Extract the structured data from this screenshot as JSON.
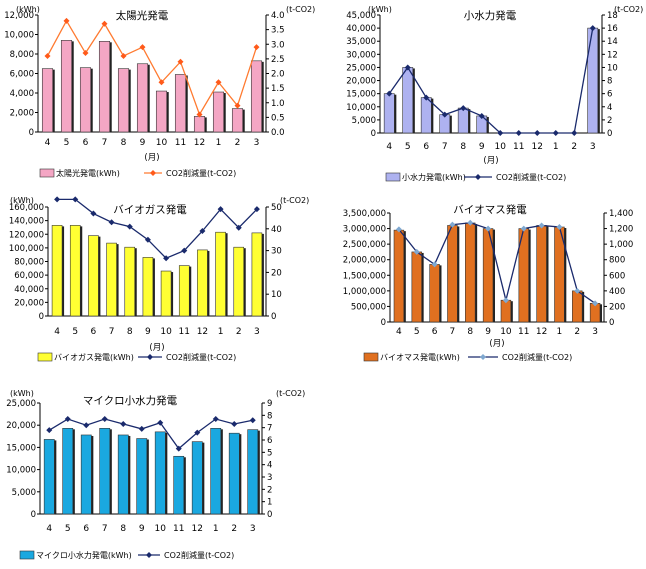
{
  "chart_data": [
    {
      "type": "bar",
      "title": "太陽光発電",
      "xlabel": "(月)",
      "y_unit_left": "(kWh)",
      "y_unit_right": "(t-CO2)",
      "categories": [
        "4",
        "5",
        "6",
        "7",
        "8",
        "9",
        "10",
        "11",
        "12",
        "1",
        "2",
        "3"
      ],
      "ylim_left": [
        0,
        12000
      ],
      "ytick_left": [
        "0",
        "2,000",
        "4,000",
        "6,000",
        "8,000",
        "10,000",
        "12,000"
      ],
      "ylim_right": [
        0,
        4
      ],
      "ytick_right": [
        "0.0",
        "0.5",
        "1.0",
        "1.5",
        "2.0",
        "2.5",
        "3.0",
        "3.5",
        "4.0"
      ],
      "bar_series": {
        "name": "太陽光発電(kWh)",
        "color": "#f4a6c4",
        "values": [
          6500,
          9400,
          6600,
          9300,
          6500,
          7000,
          4200,
          5900,
          1600,
          4100,
          2400,
          7300
        ]
      },
      "line_series": {
        "name": "CO2削減量(t-CO2)",
        "color": "#ff7a30",
        "marker_color": "#ff5a1a",
        "values": [
          2.6,
          3.8,
          2.7,
          3.7,
          2.6,
          2.9,
          1.7,
          2.4,
          0.6,
          1.7,
          0.9,
          2.9
        ]
      },
      "legend_position": "bottom"
    },
    {
      "type": "bar",
      "title": "小水力発電",
      "xlabel": "(月)",
      "y_unit_left": "(kWh)",
      "y_unit_right": "(t-CO2)",
      "categories": [
        "4",
        "5",
        "6",
        "7",
        "8",
        "9",
        "10",
        "11",
        "12",
        "1",
        "2",
        "3"
      ],
      "ylim_left": [
        0,
        45000
      ],
      "ytick_left": [
        "0",
        "5,000",
        "10,000",
        "15,000",
        "20,000",
        "25,000",
        "30,000",
        "35,000",
        "40,000",
        "45,000"
      ],
      "ylim_right": [
        0,
        18
      ],
      "ytick_right": [
        "0",
        "2",
        "4",
        "6",
        "8",
        "10",
        "12",
        "14",
        "16",
        "18"
      ],
      "bar_series": {
        "name": "小水力発電(kWh)",
        "color": "#aeb2f0",
        "values": [
          15000,
          25000,
          13500,
          7000,
          9500,
          6500,
          0,
          0,
          0,
          0,
          0,
          40000
        ]
      },
      "line_series": {
        "name": "CO2削減量(t-CO2)",
        "color": "#1a2a6c",
        "marker_color": "#1a2a6c",
        "values": [
          6,
          10,
          5.4,
          2.8,
          3.8,
          2.6,
          0,
          0,
          0,
          0,
          0,
          16
        ]
      },
      "legend_position": "bottom"
    },
    {
      "type": "bar",
      "title": "バイオガス発電",
      "xlabel": "(月)",
      "y_unit_left": "(kWh)",
      "y_unit_right": "(t-CO2)",
      "categories": [
        "4",
        "5",
        "6",
        "7",
        "8",
        "9",
        "10",
        "11",
        "12",
        "1",
        "2",
        "3"
      ],
      "ylim_left": [
        0,
        160000
      ],
      "ytick_left": [
        "0",
        "20,000",
        "40,000",
        "60,000",
        "80,000",
        "100,000",
        "120,000",
        "140,000",
        "160,000"
      ],
      "ylim_right": [
        0,
        50
      ],
      "ytick_right": [
        "0",
        "10",
        "20",
        "30",
        "40",
        "50"
      ],
      "bar_series": {
        "name": "バイオガス発電(kWh)",
        "color": "#ffff33",
        "values": [
          133000,
          133000,
          118000,
          107000,
          101000,
          86000,
          66000,
          74000,
          97000,
          123000,
          101000,
          122000
        ]
      },
      "line_series": {
        "name": "CO2削減量(t-CO2)",
        "color": "#1a2a6c",
        "marker_color": "#1a2a6c",
        "values": [
          53.5,
          53.5,
          47,
          43,
          41,
          35,
          26.5,
          30,
          39,
          49,
          40.5,
          49
        ]
      },
      "legend_position": "bottom"
    },
    {
      "type": "bar",
      "title": "バイオマス発電",
      "xlabel": "(月)",
      "y_unit_left": "",
      "y_unit_right": "",
      "categories": [
        "4",
        "5",
        "6",
        "7",
        "8",
        "9",
        "10",
        "11",
        "12",
        "1",
        "2",
        "3"
      ],
      "ylim_left": [
        0,
        3500000
      ],
      "ytick_left": [
        "0",
        "500,000",
        "1,000,000",
        "1,500,000",
        "2,000,000",
        "2,500,000",
        "3,000,000",
        "3,500,000"
      ],
      "ylim_right": [
        0,
        1400
      ],
      "ytick_right": [
        "0",
        "200",
        "400",
        "600",
        "800",
        "1,000",
        "1,200",
        "1,400"
      ],
      "bar_series": {
        "name": "バイオマス発電(kWh)",
        "color": "#e07020",
        "values": [
          2950000,
          2250000,
          1850000,
          3100000,
          3180000,
          3000000,
          700000,
          3000000,
          3100000,
          3050000,
          1000000,
          600000
        ]
      },
      "line_series": {
        "name": "CO2削減量(t-CO2)",
        "color": "#1a2a6c",
        "marker_color": "#7fa8d0",
        "values": [
          1190,
          900,
          740,
          1250,
          1275,
          1200,
          280,
          1200,
          1240,
          1220,
          400,
          240
        ]
      },
      "legend_position": "bottom"
    },
    {
      "type": "bar",
      "title": "マイクロ小水力発電",
      "xlabel": "",
      "y_unit_left": "(kWh)",
      "y_unit_right": "(t-CO2)",
      "categories": [
        "4",
        "5",
        "6",
        "7",
        "8",
        "9",
        "10",
        "11",
        "12",
        "1",
        "2",
        "3"
      ],
      "ylim_left": [
        0,
        25000
      ],
      "ytick_left": [
        "0",
        "5,000",
        "10,000",
        "15,000",
        "20,000",
        "25,000"
      ],
      "ylim_right": [
        0,
        9
      ],
      "ytick_right": [
        "0",
        "1",
        "2",
        "3",
        "4",
        "5",
        "6",
        "7",
        "8",
        "9"
      ],
      "bar_series": {
        "name": "マイクロ小水力発電(kWh)",
        "color": "#1aa8e0",
        "values": [
          16800,
          19300,
          17800,
          19300,
          17800,
          17000,
          18500,
          13000,
          16300,
          19300,
          18200,
          19000
        ]
      },
      "line_series": {
        "name": "CO2削減量(t-CO2)",
        "color": "#1a2a6c",
        "marker_color": "#1a2a6c",
        "values": [
          6.8,
          7.7,
          7.2,
          7.7,
          7.3,
          6.9,
          7.4,
          5.3,
          6.6,
          7.7,
          7.3,
          7.6
        ]
      },
      "legend_position": "bottom"
    }
  ]
}
